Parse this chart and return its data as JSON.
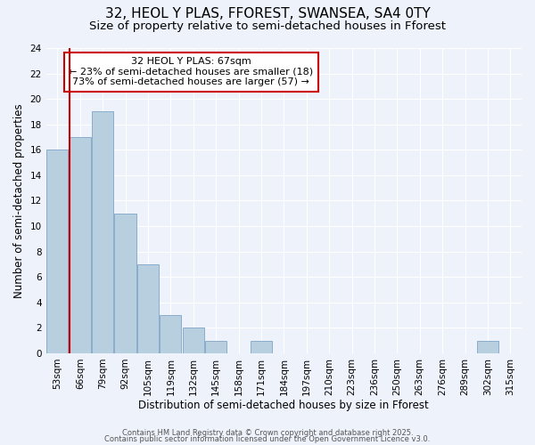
{
  "title": "32, HEOL Y PLAS, FFOREST, SWANSEA, SA4 0TY",
  "subtitle": "Size of property relative to semi-detached houses in Fforest",
  "xlabel": "Distribution of semi-detached houses by size in Fforest",
  "ylabel": "Number of semi-detached properties",
  "bin_labels": [
    "53sqm",
    "66sqm",
    "79sqm",
    "92sqm",
    "105sqm",
    "119sqm",
    "132sqm",
    "145sqm",
    "158sqm",
    "171sqm",
    "184sqm",
    "197sqm",
    "210sqm",
    "223sqm",
    "236sqm",
    "250sqm",
    "263sqm",
    "276sqm",
    "289sqm",
    "302sqm",
    "315sqm"
  ],
  "bar_heights": [
    16,
    17,
    19,
    11,
    7,
    3,
    2,
    1,
    0,
    1,
    0,
    0,
    0,
    0,
    0,
    0,
    0,
    0,
    0,
    1,
    0
  ],
  "bar_color": "#b8cfe0",
  "bar_edge_color": "#8aacca",
  "property_line_after_bar": 1,
  "property_line_color": "#cc0000",
  "annotation_title": "32 HEOL Y PLAS: 67sqm",
  "annotation_line1": "← 23% of semi-detached houses are smaller (18)",
  "annotation_line2": "73% of semi-detached houses are larger (57) →",
  "annotation_box_color": "#ffffff",
  "annotation_box_edge": "#cc0000",
  "ylim": [
    0,
    24
  ],
  "yticks": [
    0,
    2,
    4,
    6,
    8,
    10,
    12,
    14,
    16,
    18,
    20,
    22,
    24
  ],
  "background_color": "#eef2fa",
  "footer_line1": "Contains HM Land Registry data © Crown copyright and database right 2025.",
  "footer_line2": "Contains public sector information licensed under the Open Government Licence v3.0.",
  "title_fontsize": 11,
  "subtitle_fontsize": 9.5,
  "axis_label_fontsize": 8.5,
  "tick_fontsize": 7.5,
  "annotation_fontsize": 8,
  "footer_fontsize": 6
}
